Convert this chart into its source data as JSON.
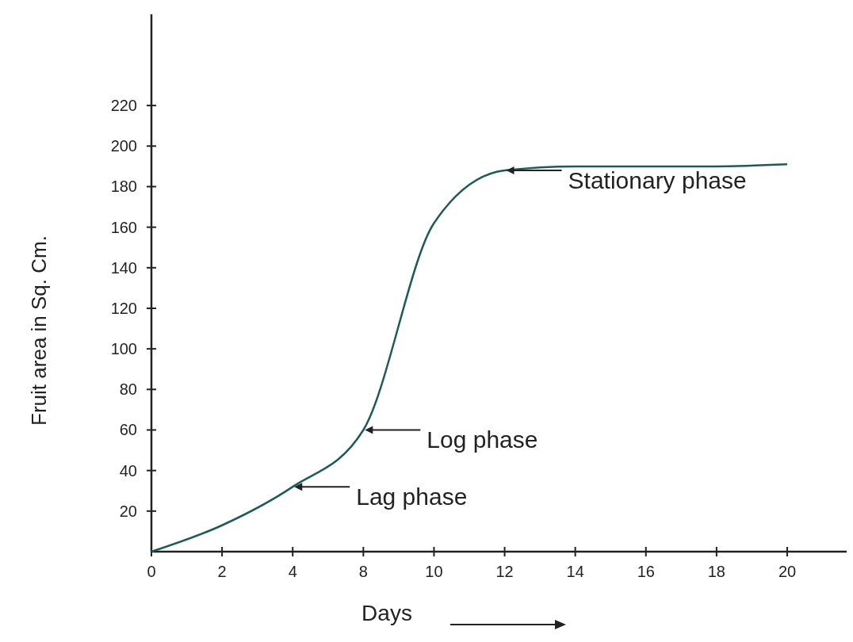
{
  "chart_data": {
    "type": "line",
    "xlabel": "Days",
    "ylabel": "Fruit area in Sq. Cm.",
    "categories": [
      "0",
      "2",
      "4",
      "8",
      "10",
      "12",
      "14",
      "16",
      "18",
      "20"
    ],
    "values": [
      0,
      13,
      32,
      60,
      162,
      188,
      190,
      190,
      190,
      191
    ],
    "color": "#1f5a5a",
    "ylim": [
      0,
      265
    ],
    "yticks": [
      20,
      40,
      60,
      80,
      100,
      120,
      140,
      160,
      180,
      200,
      220
    ],
    "grid": false,
    "marker": "none",
    "line_style": "solid",
    "annotations": [
      {
        "text": "Stationary phase",
        "x": "12",
        "y": 188
      },
      {
        "text": "Log phase",
        "x": "8",
        "y": 60
      },
      {
        "text": "Lag phase",
        "x": "4",
        "y": 32
      }
    ]
  }
}
